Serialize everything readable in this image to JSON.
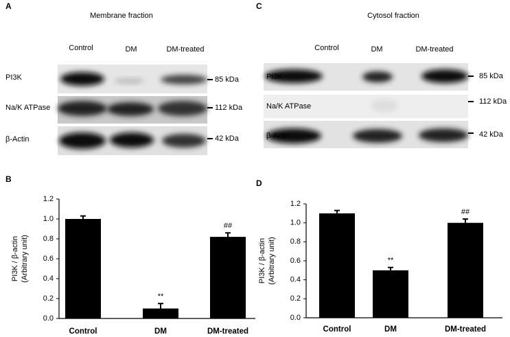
{
  "blots": [
    {
      "panel": "A",
      "title": "Membrane fraction",
      "lanes": [
        "Control",
        "DM",
        "DM-treated"
      ],
      "rows": [
        {
          "name": "PI3K",
          "size": "85 kDa"
        },
        {
          "name": "Na/K ATPase",
          "size": "112 kDa"
        },
        {
          "name": "β-Actin",
          "size": "42 kDa"
        }
      ]
    },
    {
      "panel": "C",
      "title": "Cytosol fraction",
      "lanes": [
        "Control",
        "DM",
        "DM-treated"
      ],
      "rows": [
        {
          "name": "PI3K",
          "size": "85 kDa"
        },
        {
          "name": "Na/K ATPase",
          "size": "112 kDa"
        },
        {
          "name": "β-Actin",
          "size": "42 kDa"
        }
      ]
    }
  ],
  "chart_data": [
    {
      "type": "bar",
      "panel": "B",
      "ylabel": "PI3K / β-actin",
      "ylabel_note": "(Arbitrary unit)",
      "categories": [
        "Control",
        "DM",
        "DM-treated"
      ],
      "values": [
        1.0,
        0.1,
        0.82
      ],
      "errors": [
        0.03,
        0.05,
        0.04
      ],
      "annotations": [
        null,
        "**",
        "##"
      ],
      "color": "#000000",
      "ylim": [
        0,
        1.2
      ],
      "yticks": [
        {
          "value": 0,
          "label": "0.0"
        },
        0.2,
        0.4,
        0.6,
        0.8,
        {
          "value": 1,
          "label": "1.0"
        },
        1.2
      ]
    },
    {
      "type": "bar",
      "panel": "D",
      "ylabel": "PI3K / β-actin",
      "ylabel_note": "(Arbitrary unit)",
      "categories": [
        "Control",
        "DM",
        "DM-treated"
      ],
      "values": [
        1.1,
        0.5,
        1.0
      ],
      "errors": [
        0.03,
        0.03,
        0.04
      ],
      "annotations": [
        null,
        "**",
        "##"
      ],
      "color": "#000000",
      "ylim": [
        0,
        1.2
      ],
      "yticks": [
        {
          "value": 0,
          "label": "0.0"
        },
        0.2,
        0.4,
        0.6,
        0.8,
        {
          "value": 1,
          "label": "1.0"
        },
        1.2
      ]
    }
  ]
}
